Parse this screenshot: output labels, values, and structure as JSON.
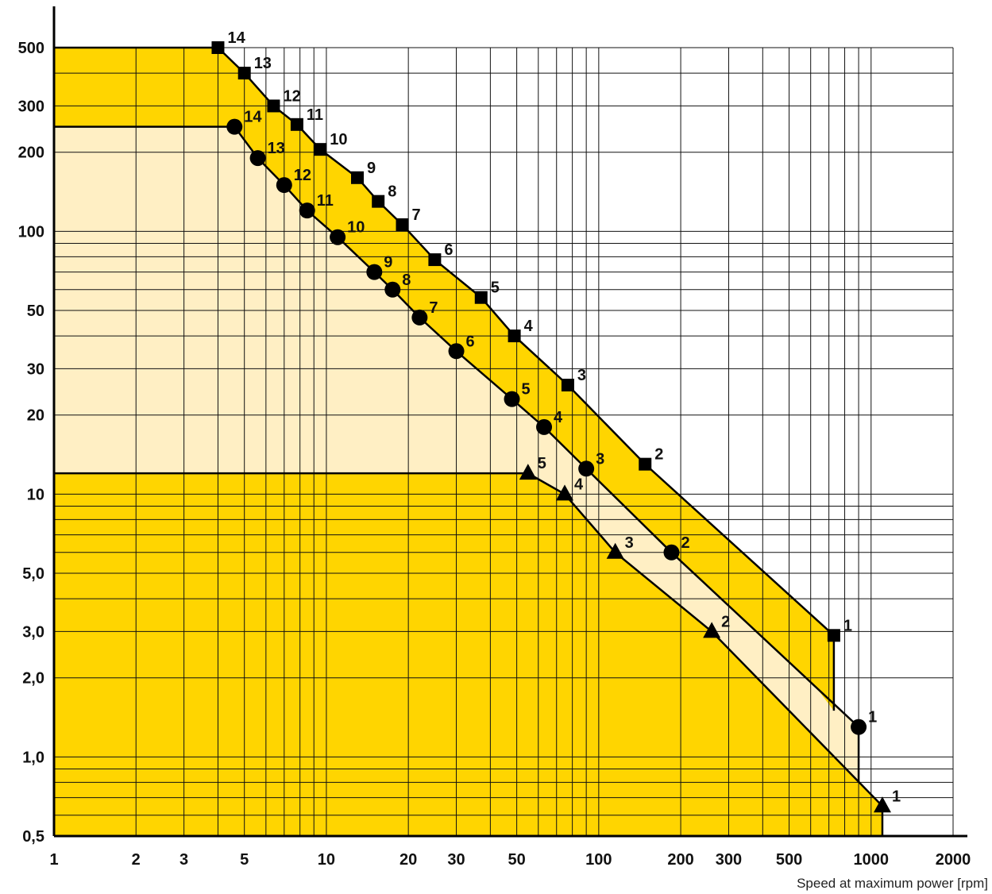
{
  "chart_data": {
    "type": "line",
    "title": "",
    "xlabel": "Speed at maximum power [rpm]",
    "ylabel": "",
    "x_scale": "log",
    "y_scale": "log",
    "xlim": [
      1,
      2000
    ],
    "ylim": [
      0.5,
      500
    ],
    "grid": true,
    "x_ticks": [
      {
        "v": 1,
        "label": "1"
      },
      {
        "v": 2,
        "label": "2"
      },
      {
        "v": 3,
        "label": "3"
      },
      {
        "v": 5,
        "label": "5"
      },
      {
        "v": 10,
        "label": "10"
      },
      {
        "v": 20,
        "label": "20"
      },
      {
        "v": 30,
        "label": "30"
      },
      {
        "v": 50,
        "label": "50"
      },
      {
        "v": 100,
        "label": "100"
      },
      {
        "v": 200,
        "label": "200"
      },
      {
        "v": 300,
        "label": "300"
      },
      {
        "v": 500,
        "label": "500"
      },
      {
        "v": 1000,
        "label": "1000"
      },
      {
        "v": 2000,
        "label": "2000"
      }
    ],
    "y_ticks": [
      {
        "v": 0.5,
        "label": "0,5"
      },
      {
        "v": 1,
        "label": "1,0"
      },
      {
        "v": 2,
        "label": "2,0"
      },
      {
        "v": 3,
        "label": "3,0"
      },
      {
        "v": 5,
        "label": "5,0"
      },
      {
        "v": 10,
        "label": "10"
      },
      {
        "v": 20,
        "label": "20"
      },
      {
        "v": 30,
        "label": "30"
      },
      {
        "v": 50,
        "label": "50"
      },
      {
        "v": 100,
        "label": "100"
      },
      {
        "v": 200,
        "label": "200"
      },
      {
        "v": 300,
        "label": "300"
      },
      {
        "v": 500,
        "label": "500"
      }
    ],
    "series": [
      {
        "marker": "square",
        "plateau": 500,
        "floor": 1.5,
        "points": [
          {
            "label": "1",
            "x": 730,
            "y": 2.9
          },
          {
            "label": "2",
            "x": 148,
            "y": 13
          },
          {
            "label": "3",
            "x": 77,
            "y": 26
          },
          {
            "label": "4",
            "x": 49,
            "y": 40
          },
          {
            "label": "5",
            "x": 37,
            "y": 56
          },
          {
            "label": "6",
            "x": 25,
            "y": 78
          },
          {
            "label": "7",
            "x": 19,
            "y": 106
          },
          {
            "label": "8",
            "x": 15.5,
            "y": 130
          },
          {
            "label": "9",
            "x": 13,
            "y": 160
          },
          {
            "label": "10",
            "x": 9.5,
            "y": 205
          },
          {
            "label": "11",
            "x": 7.8,
            "y": 255
          },
          {
            "label": "12",
            "x": 6.4,
            "y": 300
          },
          {
            "label": "13",
            "x": 5,
            "y": 400
          },
          {
            "label": "14",
            "x": 4,
            "y": 500
          }
        ]
      },
      {
        "marker": "circle",
        "plateau": 250,
        "floor": 0.8,
        "points": [
          {
            "label": "1",
            "x": 900,
            "y": 1.3
          },
          {
            "label": "2",
            "x": 185,
            "y": 6
          },
          {
            "label": "3",
            "x": 90,
            "y": 12.5
          },
          {
            "label": "4",
            "x": 63,
            "y": 18
          },
          {
            "label": "5",
            "x": 48,
            "y": 23
          },
          {
            "label": "6",
            "x": 30,
            "y": 35
          },
          {
            "label": "7",
            "x": 22,
            "y": 47
          },
          {
            "label": "8",
            "x": 17.5,
            "y": 60
          },
          {
            "label": "9",
            "x": 15,
            "y": 70
          },
          {
            "label": "10",
            "x": 11,
            "y": 95
          },
          {
            "label": "11",
            "x": 8.5,
            "y": 120
          },
          {
            "label": "12",
            "x": 7,
            "y": 150
          },
          {
            "label": "13",
            "x": 5.6,
            "y": 190
          },
          {
            "label": "14",
            "x": 4.6,
            "y": 250
          }
        ]
      },
      {
        "marker": "triangle",
        "plateau": 12,
        "floor": 0.5,
        "points": [
          {
            "label": "1",
            "x": 1100,
            "y": 0.65
          },
          {
            "label": "2",
            "x": 260,
            "y": 3
          },
          {
            "label": "3",
            "x": 115,
            "y": 6
          },
          {
            "label": "4",
            "x": 75,
            "y": 10
          },
          {
            "label": "5",
            "x": 55,
            "y": 12
          }
        ]
      }
    ],
    "colors": {
      "dark_fill": "#FFD500",
      "light_fill": "#FFEFC4",
      "grid": "#111111",
      "line": "#000000"
    }
  }
}
